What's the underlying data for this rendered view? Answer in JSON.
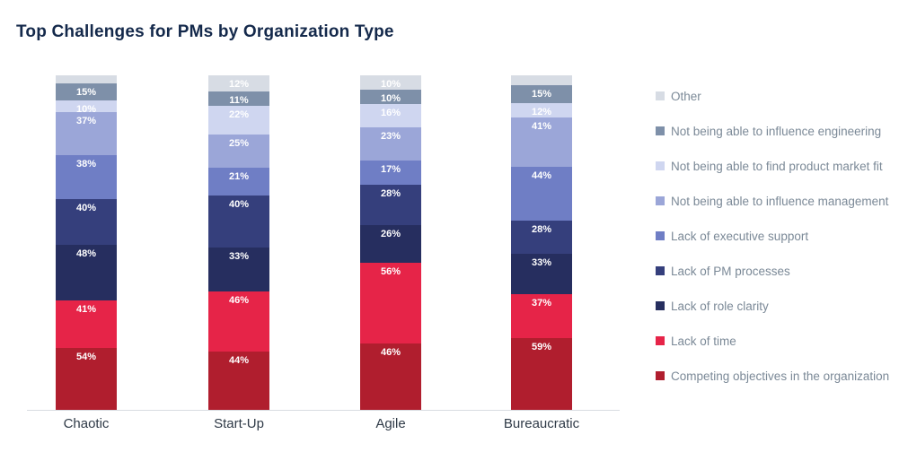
{
  "header": {
    "title": "Top Challenges for PMs by Organization Type"
  },
  "chart_data": {
    "type": "stacked-bar",
    "title": "Top Challenges for PMs by Organization Type",
    "unit": "%",
    "note": "Each bar is drawn normalized to equal height; segment labels show raw percentages. Top 'Other' labels on Chaotic and Bureaucratic are not shown in the chart (segment too small); their values are size estimates.",
    "categories": [
      "Chaotic",
      "Start-Up",
      "Agile",
      "Bureaucratic"
    ],
    "legend_position": "right",
    "grid": false,
    "series_bottom_to_top": [
      {
        "name": "Competing objectives in the organization",
        "color": "#B01E2E",
        "values": [
          54,
          44,
          46,
          59
        ],
        "labels_shown": [
          "54%",
          "44%",
          "46%",
          "59%"
        ]
      },
      {
        "name": "Lack of time",
        "color": "#E62448",
        "values": [
          41,
          46,
          56,
          37
        ],
        "labels_shown": [
          "41%",
          "46%",
          "56%",
          "37%"
        ]
      },
      {
        "name": "Lack of role clarity",
        "color": "#262E5F",
        "values": [
          48,
          33,
          26,
          33
        ],
        "labels_shown": [
          "48%",
          "33%",
          "26%",
          "33%"
        ]
      },
      {
        "name": "Lack of PM processes",
        "color": "#353F7C",
        "values": [
          40,
          40,
          28,
          28
        ],
        "labels_shown": [
          "40%",
          "40%",
          "28%",
          "28%"
        ]
      },
      {
        "name": "Lack of executive support",
        "color": "#6F7EC5",
        "values": [
          38,
          21,
          17,
          44
        ],
        "labels_shown": [
          "38%",
          "21%",
          "17%",
          "44%"
        ]
      },
      {
        "name": "Not being able to influence management",
        "color": "#9BA6D8",
        "values": [
          37,
          25,
          23,
          41
        ],
        "labels_shown": [
          "37%",
          "25%",
          "23%",
          "41%"
        ]
      },
      {
        "name": "Not being able to find product market fit",
        "color": "#CFD6F0",
        "values": [
          10,
          22,
          16,
          12
        ],
        "labels_shown": [
          "10%",
          "22%",
          "16%",
          "12%"
        ]
      },
      {
        "name": "Not being able to influence engineering",
        "color": "#7E90A9",
        "values": [
          15,
          11,
          10,
          15
        ],
        "labels_shown": [
          "15%",
          "11%",
          "10%",
          "15%"
        ]
      },
      {
        "name": "Other",
        "color": "#D7DCE4",
        "values": [
          7,
          12,
          10,
          8
        ],
        "labels_shown": [
          "",
          "12%",
          "10%",
          ""
        ]
      }
    ],
    "legend_top_to_bottom": [
      "Other",
      "Not being able to influence engineering",
      "Not being able to find product market fit",
      "Not being able to influence management",
      "Lack of executive support",
      "Lack of PM processes",
      "Lack of role clarity",
      "Lack of time",
      "Competing objectives in the organization"
    ]
  }
}
